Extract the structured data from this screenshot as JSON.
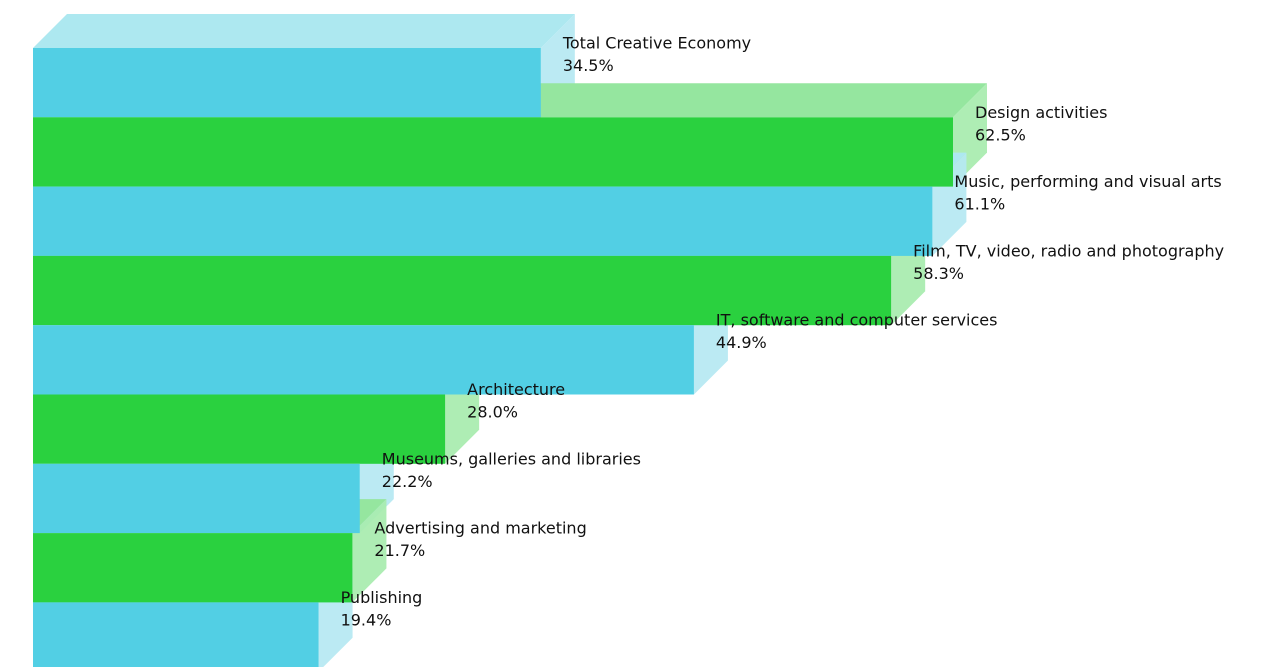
{
  "colors": {
    "blue_front": "#52cfe4",
    "blue_side": "#b5e8f2",
    "blue_top": "#ade8f0",
    "green_front": "#2ad13f",
    "green_side": "#a7ebae",
    "green_top": "#95e69f"
  },
  "chart_data": {
    "type": "bar",
    "orientation": "horizontal",
    "style": "3d-extruded",
    "xlim": [
      0,
      62.5
    ],
    "categories": [
      "Total Creative Economy",
      "Design activities",
      "Music, performing and visual arts",
      "Film, TV, video, radio and photography",
      "IT, software and computer services",
      "Architecture",
      "Museums, galleries and libraries",
      "Advertising and marketing",
      "Publishing"
    ],
    "values": [
      34.5,
      62.5,
      61.1,
      58.3,
      44.9,
      28.0,
      22.2,
      21.7,
      19.4
    ],
    "value_labels": [
      "34.5%",
      "62.5%",
      "61.1%",
      "58.3%",
      "44.9%",
      "28.0%",
      "22.2%",
      "21.7%",
      "19.4%"
    ],
    "bar_colors": [
      "blue",
      "green",
      "blue",
      "green",
      "blue",
      "green",
      "blue",
      "green",
      "blue"
    ],
    "grid": false,
    "legend": "none"
  }
}
